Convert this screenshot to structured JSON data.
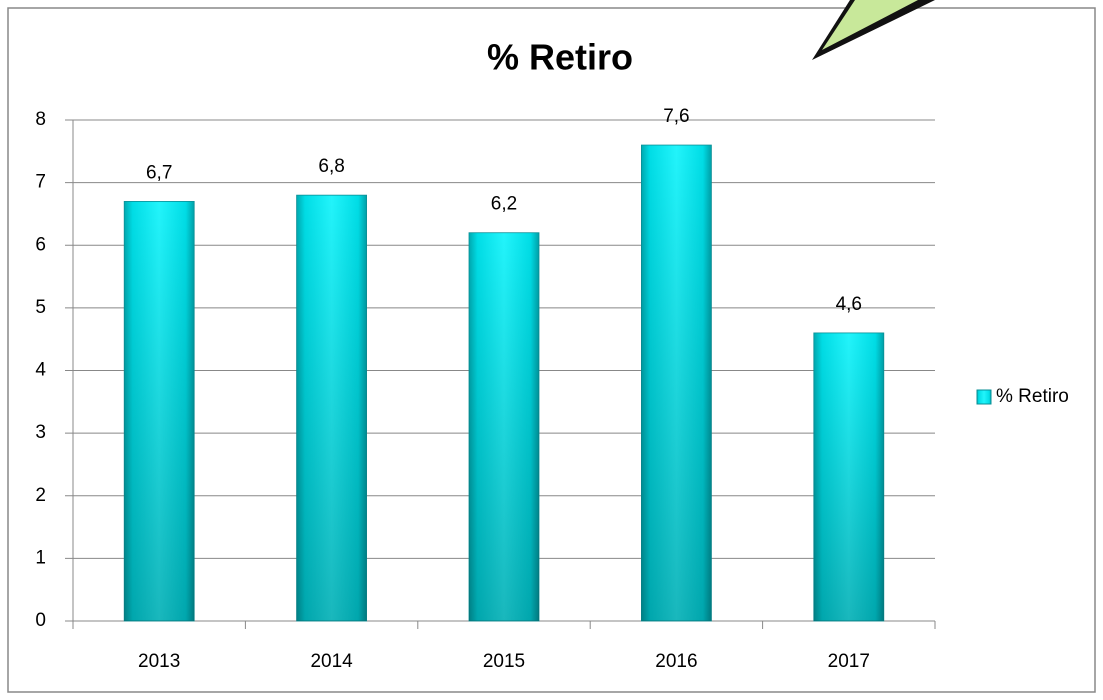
{
  "chart_data": {
    "type": "bar",
    "title": "% Retiro",
    "categories": [
      "2013",
      "2014",
      "2015",
      "2016",
      "2017"
    ],
    "series": [
      {
        "name": "% Retiro",
        "color": "#00e5ee",
        "values": [
          6.7,
          6.8,
          6.2,
          7.6,
          4.6
        ],
        "value_labels": [
          "6,7",
          "6,8",
          "6,2",
          "7,6",
          "4,6"
        ]
      }
    ],
    "ylim": [
      0,
      8
    ],
    "yticks": [
      0,
      1,
      2,
      3,
      4,
      5,
      6,
      7,
      8
    ],
    "grid": true,
    "legend": "right"
  }
}
